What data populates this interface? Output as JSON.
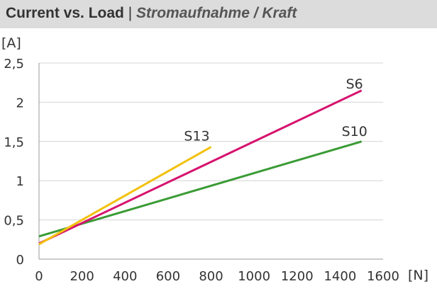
{
  "title": {
    "main": "Current vs. Load",
    "separator": "|",
    "subtitle": "Stromaufnahme / Kraft"
  },
  "chart_data": {
    "type": "line",
    "title": "Current vs. Load",
    "subtitle": "Stromaufnahme / Kraft",
    "xlabel": "[N]",
    "ylabel": "[A]",
    "xlim": [
      0,
      1600
    ],
    "ylim": [
      0,
      2.5
    ],
    "x_ticks": [
      0,
      200,
      400,
      600,
      800,
      1000,
      1200,
      1400,
      1600
    ],
    "x_tick_labels": [
      "0",
      "200",
      "400",
      "600",
      "800",
      "1000",
      "1200",
      "1400",
      "1600"
    ],
    "y_ticks": [
      0,
      0.5,
      1,
      1.5,
      2,
      2.5
    ],
    "y_tick_labels": [
      "0",
      "0,5",
      "1",
      "1,5",
      "2",
      "2,5"
    ],
    "grid": "horizontal",
    "legend": "inline labels at line ends",
    "series": [
      {
        "name": "S6",
        "color": "#d6136f",
        "x": [
          0,
          1500
        ],
        "y": [
          0.2,
          2.15
        ]
      },
      {
        "name": "S10",
        "color": "#3a9b35",
        "x": [
          0,
          1500
        ],
        "y": [
          0.29,
          1.5
        ]
      },
      {
        "name": "S13",
        "color": "#f2c10e",
        "x": [
          0,
          800
        ],
        "y": [
          0.19,
          1.43
        ]
      }
    ]
  }
}
